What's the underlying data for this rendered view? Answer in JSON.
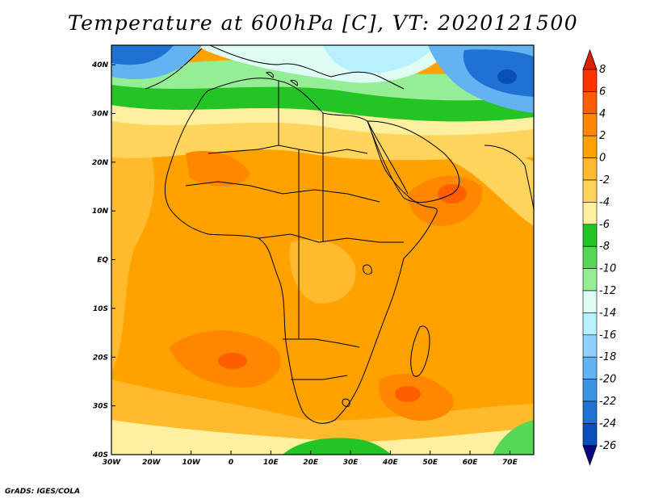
{
  "title": "Temperature at 600hPa [C], VT: 2020121500",
  "credit": "GrADS: IGES/COLA",
  "map": {
    "projection": "latlon",
    "lon_range": [
      -30,
      76
    ],
    "lat_range": [
      -40,
      44
    ],
    "variable": "Temperature at 600hPa",
    "units": "C",
    "valid_time": "2020121500",
    "x_ticks": [
      {
        "lon": -30,
        "label": "30W"
      },
      {
        "lon": -20,
        "label": "20W"
      },
      {
        "lon": -10,
        "label": "10W"
      },
      {
        "lon": 0,
        "label": "0"
      },
      {
        "lon": 10,
        "label": "10E"
      },
      {
        "lon": 20,
        "label": "20E"
      },
      {
        "lon": 30,
        "label": "30E"
      },
      {
        "lon": 40,
        "label": "40E"
      },
      {
        "lon": 50,
        "label": "50E"
      },
      {
        "lon": 60,
        "label": "60E"
      },
      {
        "lon": 70,
        "label": "70E"
      }
    ],
    "y_ticks": [
      {
        "lat": 40,
        "label": "40N"
      },
      {
        "lat": 30,
        "label": "30N"
      },
      {
        "lat": 20,
        "label": "20N"
      },
      {
        "lat": 10,
        "label": "10N"
      },
      {
        "lat": 0,
        "label": "EQ"
      },
      {
        "lat": -10,
        "label": "10S"
      },
      {
        "lat": -20,
        "label": "20S"
      },
      {
        "lat": -30,
        "label": "30S"
      },
      {
        "lat": -40,
        "label": "40S"
      }
    ]
  },
  "colorbar": {
    "labels": [
      "8",
      "6",
      "4",
      "2",
      "0",
      "-2",
      "-4",
      "-6",
      "-8",
      "-10",
      "-12",
      "-14",
      "-16",
      "-18",
      "-20",
      "-22",
      "-24",
      "-26"
    ],
    "colors": [
      "#ff3300",
      "#ff5e00",
      "#ff8700",
      "#ffa200",
      "#ffba2e",
      "#ffd45c",
      "#fff0a0",
      "#23c423",
      "#56d856",
      "#95ee95",
      "#dffcf4",
      "#b8f0ff",
      "#90d0ff",
      "#63b3f2",
      "#3d93e3",
      "#1f72d4",
      "#0a4fb8"
    ],
    "top_color": "#dd2200",
    "bottom_color": "#080880"
  },
  "regions": {
    "colors": {
      "very_cold": "#0a4fb8",
      "cold": "#1f72d4",
      "cool_blue": "#63b3f2",
      "light_blue": "#b8f0ff",
      "pale": "#dffcf4",
      "light_green": "#95ee95",
      "green": "#56d856",
      "dark_green": "#23c423",
      "cream": "#fff0a0",
      "pale_yellow": "#ffd45c",
      "light_orange": "#ffba2e",
      "orange": "#ffa200",
      "dark_orange": "#ff8700",
      "red_orange": "#ff5e00"
    }
  }
}
